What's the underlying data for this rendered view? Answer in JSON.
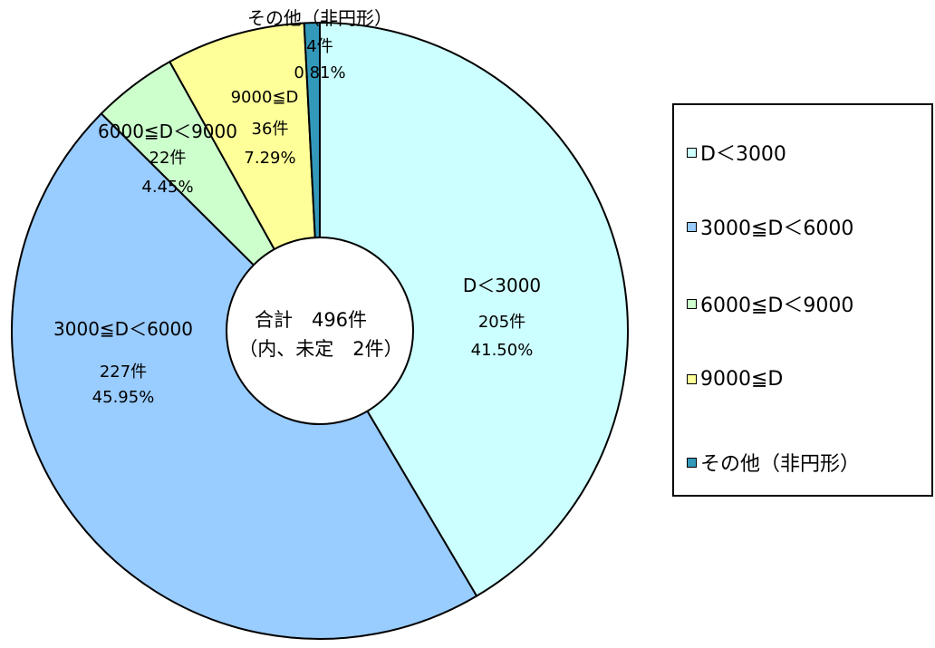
{
  "chart_data": {
    "type": "pie",
    "title": "",
    "center_label": {
      "line1": "合計　496件",
      "line2": "（内、未定　2件）"
    },
    "slices": [
      {
        "name": "D＜3000",
        "count_label": "205件",
        "percent_label": "41.50%",
        "value": 41.5,
        "color": "#ccffff"
      },
      {
        "name": "3000≦D＜6000",
        "count_label": "227件",
        "percent_label": "45.95%",
        "value": 45.95,
        "color": "#99ccff"
      },
      {
        "name": "6000≦D＜9000",
        "count_label": "22件",
        "percent_label": "4.45%",
        "value": 4.45,
        "color": "#ccffcc"
      },
      {
        "name": "9000≦D",
        "count_label": "36件",
        "percent_label": "7.29%",
        "value": 7.29,
        "color": "#ffff99"
      },
      {
        "name": "その他（非円形）",
        "count_label": "4件",
        "percent_label": "0.81%",
        "value": 0.81,
        "color": "#3399bb"
      }
    ],
    "legend": {
      "position": "right",
      "items": [
        "D＜3000",
        "3000≦D＜6000",
        "6000≦D＜9000",
        "9000≦D",
        "その他（非円形）"
      ]
    }
  }
}
